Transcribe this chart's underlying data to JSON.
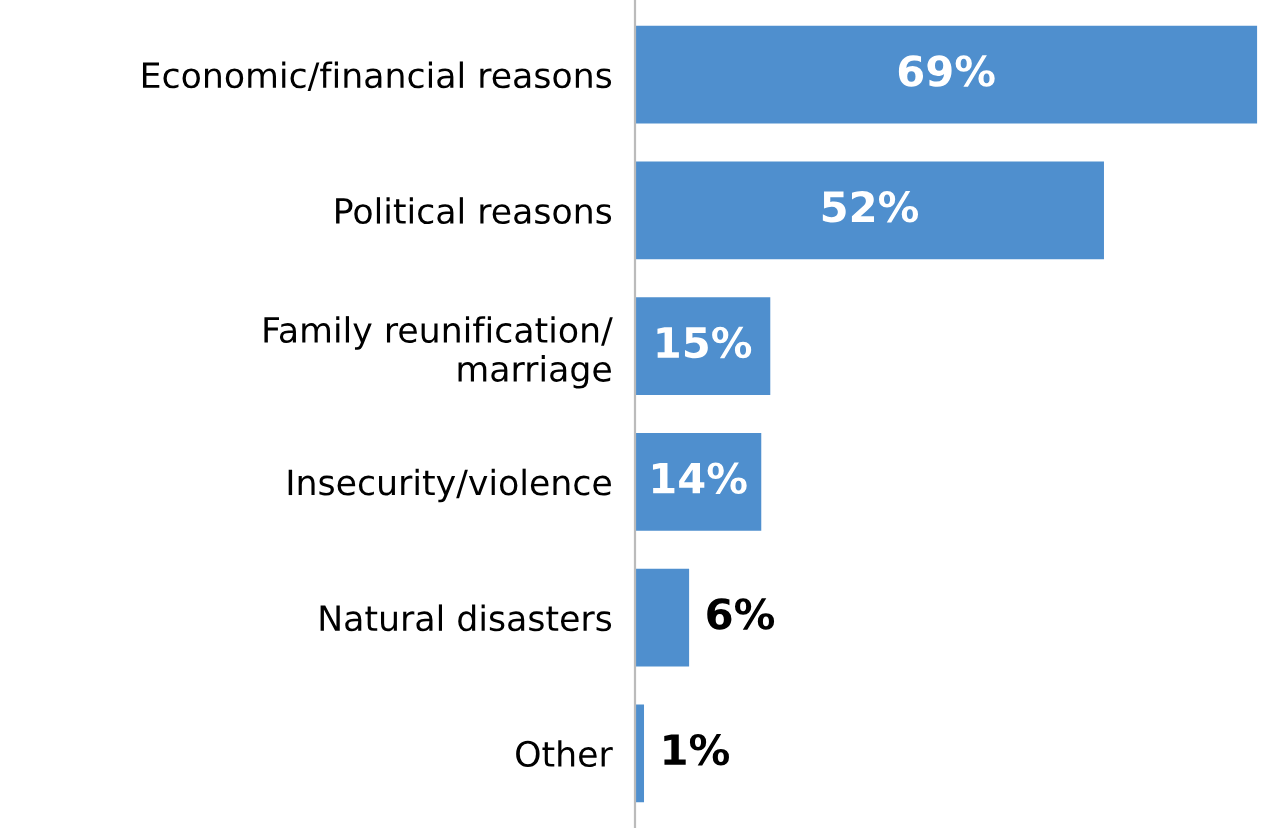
{
  "chart_data": {
    "type": "bar",
    "orientation": "horizontal",
    "categories": [
      "Economic/financial reasons",
      "Political reasons",
      "Family reunification/\nmarriage",
      "Insecurity/violence",
      "Natural disasters",
      "Other"
    ],
    "values": [
      69,
      52,
      15,
      14,
      6,
      1
    ],
    "value_labels": [
      "69%",
      "52%",
      "15%",
      "14%",
      "6%",
      "1%"
    ],
    "color": "#4f8fce",
    "grid": false,
    "legend": false
  }
}
